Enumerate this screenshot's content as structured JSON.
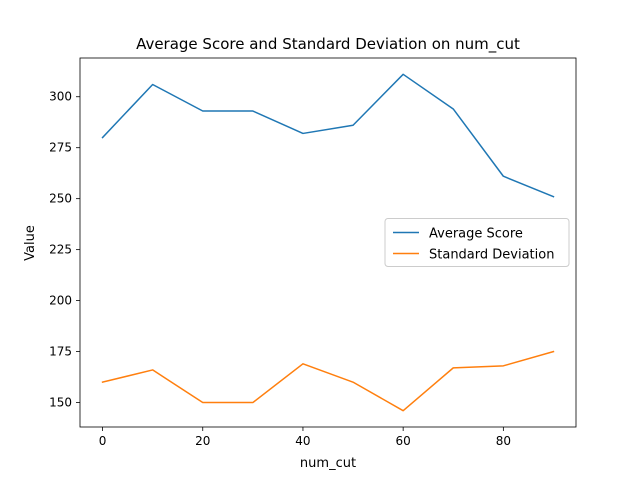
{
  "chart_data": {
    "type": "line",
    "title": "Average Score and Standard Deviation on num_cut",
    "xlabel": "num_cut",
    "ylabel": "Value",
    "x": [
      0,
      10,
      20,
      30,
      40,
      50,
      60,
      70,
      80,
      90
    ],
    "xlim": [
      -4.5,
      94.5
    ],
    "ylim": [
      138,
      319
    ],
    "xticks": [
      0,
      20,
      40,
      60,
      80
    ],
    "yticks": [
      150,
      175,
      200,
      225,
      250,
      275,
      300
    ],
    "grid": false,
    "legend_position": "center-right",
    "series": [
      {
        "name": "Average Score",
        "color": "#1f77b4",
        "values": [
          280,
          306,
          293,
          293,
          282,
          286,
          311,
          294,
          261,
          251
        ]
      },
      {
        "name": "Standard Deviation",
        "color": "#ff7f0e",
        "values": [
          160,
          166,
          150,
          150,
          169,
          160,
          146,
          167,
          168,
          175
        ]
      }
    ]
  }
}
